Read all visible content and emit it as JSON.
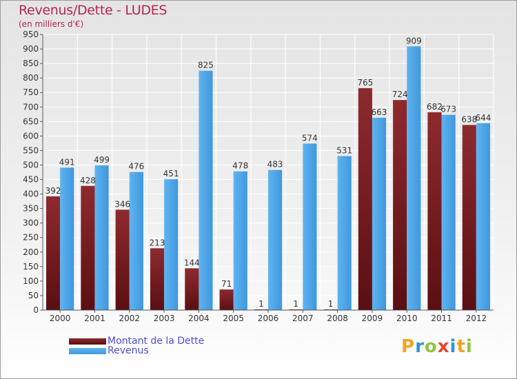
{
  "header": {
    "title": "Revenus/Dette - LUDES",
    "subtitle": "(en milliers d'€)"
  },
  "logo": {
    "text": "Proxiti",
    "letters": [
      "P",
      "r",
      "o",
      "x",
      "i",
      "t",
      "i"
    ],
    "colors": [
      "#f2a41e",
      "#2f93d9",
      "#8dc63f",
      "#e8452a",
      "#2f93d9",
      "#f2a41e",
      "#8dc63f"
    ]
  },
  "chart_data": {
    "type": "bar",
    "categories": [
      "2000",
      "2001",
      "2002",
      "2003",
      "2004",
      "2005",
      "2006",
      "2007",
      "2008",
      "2009",
      "2010",
      "2011",
      "2012"
    ],
    "series": [
      {
        "name": "Montant de la Dette",
        "color": "#7a1c20",
        "values": [
          392,
          428,
          346,
          213,
          144,
          71,
          1,
          1,
          1,
          765,
          724,
          682,
          638
        ]
      },
      {
        "name": "Revenus",
        "color": "#4ca6e8",
        "values": [
          491,
          499,
          476,
          451,
          825,
          478,
          483,
          574,
          531,
          663,
          909,
          673,
          644
        ]
      }
    ],
    "ylim": [
      0,
      950
    ],
    "yticks": [
      0,
      50,
      100,
      150,
      200,
      250,
      300,
      350,
      400,
      450,
      500,
      550,
      600,
      650,
      700,
      750,
      800,
      850,
      900,
      950
    ],
    "grid": true,
    "legend": "bottom-left"
  }
}
